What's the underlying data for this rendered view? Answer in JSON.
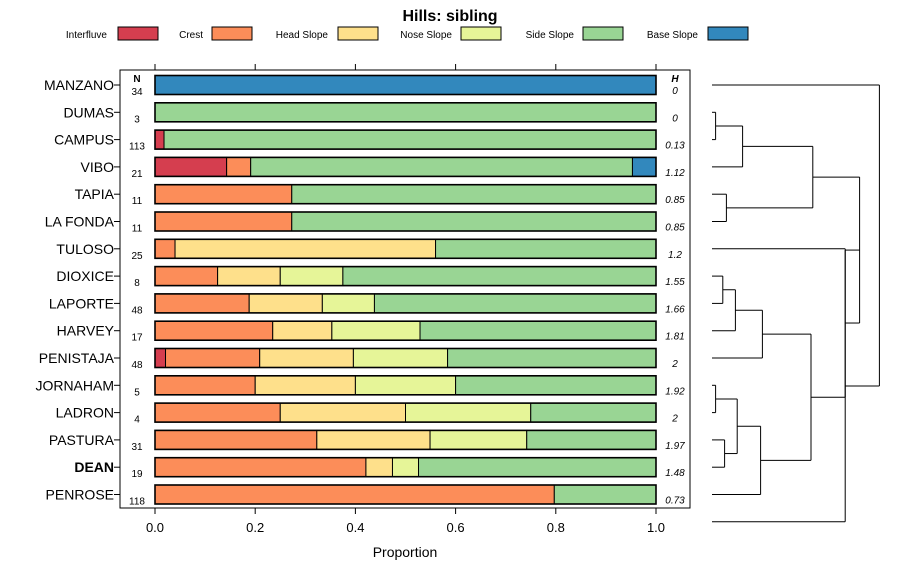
{
  "chart_data": {
    "type": "bar",
    "orientation": "horizontal",
    "stacked": true,
    "title": "Hills: sibling",
    "xlabel": "Proportion",
    "ylabel": "",
    "xlim": [
      0,
      1
    ],
    "xticks": [
      "0.0",
      "0.2",
      "0.4",
      "0.6",
      "0.8",
      "1.0"
    ],
    "n_header": "N",
    "h_header": "H",
    "legend": [
      {
        "name": "Interfluve",
        "color": "#d53e4f"
      },
      {
        "name": "Crest",
        "color": "#fc8d59"
      },
      {
        "name": "Head Slope",
        "color": "#fee08b"
      },
      {
        "name": "Nose Slope",
        "color": "#e6f598"
      },
      {
        "name": "Side Slope",
        "color": "#99d594"
      },
      {
        "name": "Base Slope",
        "color": "#3288bd"
      }
    ],
    "rows": [
      {
        "name": "MANZANO",
        "n": "34",
        "h": "0",
        "bold": false,
        "values": [
          0,
          0,
          0,
          0,
          0,
          1.0
        ]
      },
      {
        "name": "DUMAS",
        "n": "3",
        "h": "0",
        "bold": false,
        "values": [
          0,
          0,
          0,
          0,
          1.0,
          0
        ]
      },
      {
        "name": "CAMPUS",
        "n": "113",
        "h": "0.13",
        "bold": false,
        "values": [
          0.018,
          0,
          0,
          0,
          0.982,
          0
        ]
      },
      {
        "name": "VIBO",
        "n": "21",
        "h": "1.12",
        "bold": false,
        "values": [
          0.143,
          0.048,
          0,
          0,
          0.762,
          0.047
        ]
      },
      {
        "name": "TAPIA",
        "n": "11",
        "h": "0.85",
        "bold": false,
        "values": [
          0,
          0.273,
          0,
          0,
          0.727,
          0
        ]
      },
      {
        "name": "LA FONDA",
        "n": "11",
        "h": "0.85",
        "bold": false,
        "values": [
          0,
          0.273,
          0,
          0,
          0.727,
          0
        ]
      },
      {
        "name": "TULOSO",
        "n": "25",
        "h": "1.2",
        "bold": false,
        "values": [
          0,
          0.04,
          0.52,
          0,
          0.44,
          0
        ]
      },
      {
        "name": "DIOXICE",
        "n": "8",
        "h": "1.55",
        "bold": false,
        "values": [
          0,
          0.125,
          0.125,
          0.125,
          0.625,
          0
        ]
      },
      {
        "name": "LAPORTE",
        "n": "48",
        "h": "1.66",
        "bold": false,
        "values": [
          0,
          0.188,
          0.146,
          0.104,
          0.562,
          0
        ]
      },
      {
        "name": "HARVEY",
        "n": "17",
        "h": "1.81",
        "bold": false,
        "values": [
          0,
          0.235,
          0.118,
          0.176,
          0.471,
          0
        ]
      },
      {
        "name": "PENISTAJA",
        "n": "48",
        "h": "2",
        "bold": false,
        "values": [
          0.021,
          0.188,
          0.187,
          0.188,
          0.416,
          0
        ]
      },
      {
        "name": "JORNAHAM",
        "n": "5",
        "h": "1.92",
        "bold": false,
        "values": [
          0,
          0.2,
          0.2,
          0.2,
          0.4,
          0
        ]
      },
      {
        "name": "LADRON",
        "n": "4",
        "h": "2",
        "bold": false,
        "values": [
          0,
          0.25,
          0.25,
          0.25,
          0.25,
          0
        ]
      },
      {
        "name": "PASTURA",
        "n": "31",
        "h": "1.97",
        "bold": false,
        "values": [
          0,
          0.323,
          0.226,
          0.193,
          0.258,
          0
        ]
      },
      {
        "name": "DEAN",
        "n": "19",
        "h": "1.48",
        "bold": true,
        "values": [
          0,
          0.421,
          0.053,
          0.052,
          0.474,
          0
        ]
      },
      {
        "name": "PENROSE",
        "n": "118",
        "h": "0.73",
        "bold": false,
        "values": [
          0,
          0.797,
          0,
          0,
          0.203,
          0
        ]
      }
    ],
    "dendrogram": [
      {
        "a": 2,
        "b": 3,
        "h": 0.02
      },
      {
        "a": "c0",
        "b": 4,
        "h": 0.17
      },
      {
        "a": 5,
        "b": 6,
        "h": 0.08
      },
      {
        "a": 8,
        "b": 9,
        "h": 0.06
      },
      {
        "a": "c3",
        "b": 10,
        "h": 0.13
      },
      {
        "a": "c4",
        "b": 11,
        "h": 0.28
      },
      {
        "a": 12,
        "b": 13,
        "h": 0.02
      },
      {
        "a": 14,
        "b": 15,
        "h": 0.07
      },
      {
        "a": "c6",
        "b": "c7",
        "h": 0.14
      },
      {
        "a": "c8",
        "b": 16,
        "h": 0.27
      },
      {
        "a": "c5",
        "b": "c9",
        "h": 0.55
      },
      {
        "a": 7,
        "b": "c10",
        "h": 0.74
      },
      {
        "a": "c1",
        "b": "c2",
        "h": 0.56
      },
      {
        "a": "c12",
        "b": "c11",
        "h": 0.82
      },
      {
        "a": "c13",
        "b": 17,
        "h": 0.74
      },
      {
        "a": 1,
        "b": "c14",
        "h": 0.93
      }
    ]
  }
}
